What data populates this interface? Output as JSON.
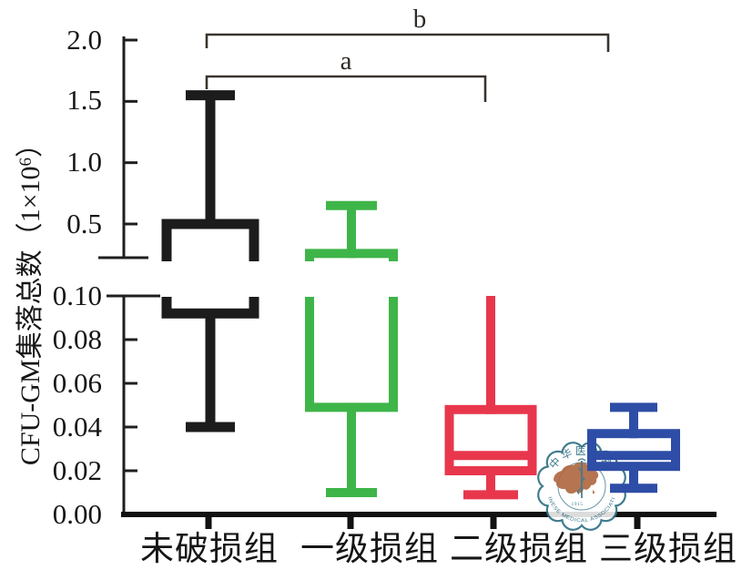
{
  "figure": {
    "background": "#ffffff",
    "watermark": {
      "org_cn": "中华医学会",
      "org_en": "CHINESE MEDICAL ASSOCIATION",
      "year": "1915",
      "ring_color": "#2c6e82",
      "map_color": "#a8582e"
    }
  },
  "chart_data": {
    "type": "box",
    "title": "",
    "ylabel_prefix": "CFU-GM集落总数（1×10",
    "ylabel_sup": "6",
    "ylabel_suffix": "）",
    "xlabel": "",
    "axis_break": true,
    "grid": false,
    "upper_axis": {
      "ticks": [
        "2.0",
        "1.5",
        "1.0",
        "0.5"
      ],
      "values": [
        2.0,
        1.5,
        1.0,
        0.5
      ],
      "range": [
        0.22,
        2.03
      ]
    },
    "lower_axis": {
      "ticks": [
        "0.10",
        "0.08",
        "0.06",
        "0.04",
        "0.02",
        "0.00"
      ],
      "values": [
        0.1,
        0.08,
        0.06,
        0.04,
        0.02,
        0.0
      ],
      "range": [
        0.0,
        0.1
      ]
    },
    "categories": [
      "未破损组",
      "一级损组",
      "二级损组",
      "三级损组"
    ],
    "series": [
      {
        "name": "未破损组",
        "color": "#1c1c1c",
        "whisker_high": 1.55,
        "q3": 0.5,
        "median": null,
        "q1": 0.092,
        "whisker_low": 0.04,
        "crosses_break": true,
        "cap_high": true,
        "cap_low": true
      },
      {
        "name": "一级损组",
        "color": "#3eb549",
        "whisker_high": 0.65,
        "q3": 0.26,
        "median": null,
        "q1": 0.049,
        "whisker_low": 0.01,
        "crosses_break": true,
        "cap_high": true,
        "cap_low": true
      },
      {
        "name": "二级损组",
        "color": "#e8374d",
        "whisker_high": 0.1,
        "q3": 0.048,
        "median": 0.027,
        "q1": 0.02,
        "whisker_low": 0.009,
        "crosses_break": false,
        "cap_high": false,
        "cap_low": true
      },
      {
        "name": "三级损组",
        "color": "#2e4da6",
        "whisker_high": 0.049,
        "q3": 0.037,
        "median": 0.027,
        "q1": 0.022,
        "whisker_low": 0.012,
        "crosses_break": false,
        "cap_high": true,
        "cap_low": true
      }
    ],
    "annotations": [
      {
        "label": "a",
        "from": "未破损组",
        "to": "二级损组"
      },
      {
        "label": "b",
        "from": "未破损组",
        "to": "三级损组"
      }
    ],
    "colors": {
      "axis": "#1f1f1f",
      "bracket": "#3a342e"
    }
  }
}
